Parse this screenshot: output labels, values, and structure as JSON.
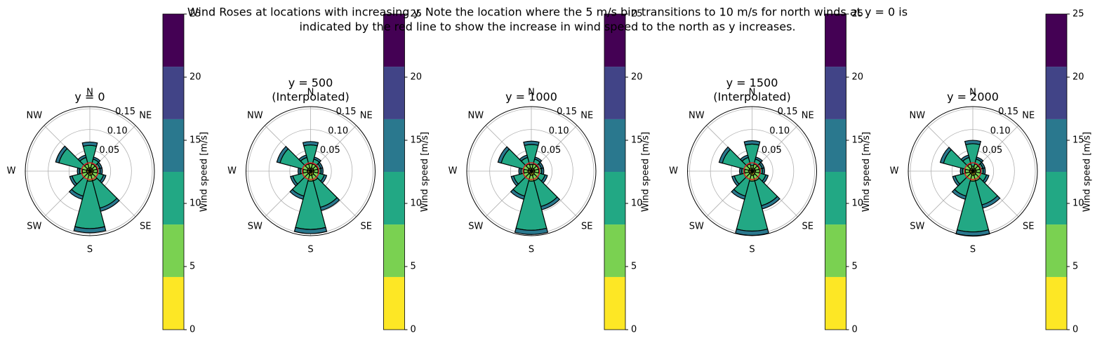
{
  "title": [
    "Wind Roses at locations with increasing y.  Note the location where the 5 m/s bin transitions to 10 m/s for north winds at y = 0 is",
    "indicated by the red line to show the increase in wind speed to the north as y increases."
  ],
  "chart_data": [
    {
      "type": "windrose",
      "title": "y = 0",
      "directions": [
        0,
        30,
        60,
        90,
        120,
        150,
        180,
        210,
        240,
        270,
        300,
        330
      ],
      "rlim": [
        0,
        0.155
      ],
      "rticks": [
        {
          "value": 0.05,
          "label": "0.05"
        },
        {
          "value": 0.1,
          "label": "0.10"
        },
        {
          "value": 0.15,
          "label": "0.15"
        }
      ],
      "thetaticks": [
        {
          "value": 0,
          "label": "N"
        },
        {
          "value": 45,
          "label": "NE"
        },
        {
          "value": 135,
          "label": "SE"
        },
        {
          "value": 180,
          "label": "S"
        },
        {
          "value": 225,
          "label": "SW"
        },
        {
          "value": 270,
          "label": "W"
        },
        {
          "value": 315,
          "label": "NW"
        }
      ],
      "reference_radius": 0.02,
      "reference_color": "#d62728",
      "series": [
        {
          "color": "#fde725",
          "values": [
            0.008,
            0.008,
            0.008,
            0.008,
            0.008,
            0.01,
            0.01,
            0.008,
            0.008,
            0.008,
            0.008,
            0.008
          ]
        },
        {
          "color": "#7ad151",
          "values": [
            0.012,
            0.01,
            0.01,
            0.01,
            0.012,
            0.014,
            0.014,
            0.012,
            0.012,
            0.01,
            0.012,
            0.01
          ]
        },
        {
          "color": "#22a884",
          "values": [
            0.042,
            0.012,
            0.007,
            0.007,
            0.014,
            0.068,
            0.114,
            0.042,
            0.024,
            0.007,
            0.057,
            0.016
          ]
        },
        {
          "color": "#2a788e",
          "values": [
            0.008,
            0.005,
            0.005,
            0.005,
            0.006,
            0.008,
            0.01,
            0.008,
            0.006,
            0.005,
            0.008,
            0.006
          ]
        }
      ],
      "colorbar": {
        "label": "Wind speed [m/s]",
        "bounds": [
          0,
          4.17,
          8.33,
          12.5,
          16.67,
          20.83,
          25
        ],
        "colors": [
          "#fde725",
          "#7ad151",
          "#22a884",
          "#2a788e",
          "#414487",
          "#440154"
        ],
        "ticks": [
          0,
          5,
          10,
          15,
          20,
          25
        ]
      }
    },
    {
      "type": "windrose",
      "title": "y = 500",
      "subtitle": "(Interpolated)",
      "directions": [
        0,
        30,
        60,
        90,
        120,
        150,
        180,
        210,
        240,
        270,
        300,
        330
      ],
      "rlim": [
        0,
        0.155
      ],
      "rticks": [
        {
          "value": 0.05,
          "label": "0.05"
        },
        {
          "value": 0.1,
          "label": "0.10"
        },
        {
          "value": 0.15,
          "label": "0.15"
        }
      ],
      "thetaticks": [
        {
          "value": 0,
          "label": "N"
        },
        {
          "value": 45,
          "label": "NE"
        },
        {
          "value": 135,
          "label": "SE"
        },
        {
          "value": 180,
          "label": "S"
        },
        {
          "value": 225,
          "label": "SW"
        },
        {
          "value": 270,
          "label": "W"
        },
        {
          "value": 315,
          "label": "NW"
        }
      ],
      "reference_radius": 0.02,
      "reference_color": "#d62728",
      "series": [
        {
          "color": "#fde725",
          "values": [
            0.007,
            0.008,
            0.008,
            0.008,
            0.008,
            0.01,
            0.01,
            0.008,
            0.008,
            0.008,
            0.008,
            0.008
          ]
        },
        {
          "color": "#7ad151",
          "values": [
            0.011,
            0.01,
            0.01,
            0.01,
            0.012,
            0.014,
            0.014,
            0.012,
            0.012,
            0.01,
            0.012,
            0.01
          ]
        },
        {
          "color": "#22a884",
          "values": [
            0.045,
            0.012,
            0.007,
            0.007,
            0.014,
            0.066,
            0.116,
            0.042,
            0.024,
            0.007,
            0.056,
            0.016
          ]
        },
        {
          "color": "#2a788e",
          "values": [
            0.008,
            0.005,
            0.005,
            0.005,
            0.006,
            0.008,
            0.01,
            0.008,
            0.006,
            0.005,
            0.008,
            0.006
          ]
        }
      ],
      "colorbar": {
        "label": "Wind speed [m/s]",
        "bounds": [
          0,
          4.17,
          8.33,
          12.5,
          16.67,
          20.83,
          25
        ],
        "colors": [
          "#fde725",
          "#7ad151",
          "#22a884",
          "#2a788e",
          "#414487",
          "#440154"
        ],
        "ticks": [
          0,
          5,
          10,
          15,
          20,
          25
        ]
      }
    },
    {
      "type": "windrose",
      "title": "y = 1000",
      "directions": [
        0,
        30,
        60,
        90,
        120,
        150,
        180,
        210,
        240,
        270,
        300,
        330
      ],
      "rlim": [
        0,
        0.155
      ],
      "rticks": [
        {
          "value": 0.05,
          "label": "0.05"
        },
        {
          "value": 0.1,
          "label": "0.10"
        },
        {
          "value": 0.15,
          "label": "0.15"
        }
      ],
      "thetaticks": [
        {
          "value": 0,
          "label": "N"
        },
        {
          "value": 45,
          "label": "NE"
        },
        {
          "value": 135,
          "label": "SE"
        },
        {
          "value": 180,
          "label": "S"
        },
        {
          "value": 225,
          "label": "SW"
        },
        {
          "value": 270,
          "label": "W"
        },
        {
          "value": 315,
          "label": "NW"
        }
      ],
      "reference_radius": 0.02,
      "reference_color": "#d62728",
      "series": [
        {
          "color": "#fde725",
          "values": [
            0.006,
            0.008,
            0.008,
            0.008,
            0.008,
            0.01,
            0.01,
            0.008,
            0.008,
            0.008,
            0.008,
            0.008
          ]
        },
        {
          "color": "#7ad151",
          "values": [
            0.01,
            0.01,
            0.01,
            0.01,
            0.012,
            0.014,
            0.014,
            0.012,
            0.012,
            0.01,
            0.012,
            0.01
          ]
        },
        {
          "color": "#22a884",
          "values": [
            0.048,
            0.012,
            0.007,
            0.007,
            0.014,
            0.064,
            0.118,
            0.042,
            0.024,
            0.007,
            0.055,
            0.016
          ]
        },
        {
          "color": "#2a788e",
          "values": [
            0.008,
            0.005,
            0.005,
            0.005,
            0.006,
            0.008,
            0.01,
            0.008,
            0.006,
            0.005,
            0.008,
            0.006
          ]
        }
      ],
      "colorbar": {
        "label": "Wind speed [m/s]",
        "bounds": [
          0,
          4.17,
          8.33,
          12.5,
          16.67,
          20.83,
          25
        ],
        "colors": [
          "#fde725",
          "#7ad151",
          "#22a884",
          "#2a788e",
          "#414487",
          "#440154"
        ],
        "ticks": [
          0,
          5,
          10,
          15,
          20,
          25
        ]
      }
    },
    {
      "type": "windrose",
      "title": "y = 1500",
      "subtitle": "(Interpolated)",
      "directions": [
        0,
        30,
        60,
        90,
        120,
        150,
        180,
        210,
        240,
        270,
        300,
        330
      ],
      "rlim": [
        0,
        0.155
      ],
      "rticks": [
        {
          "value": 0.05,
          "label": "0.05"
        },
        {
          "value": 0.1,
          "label": "0.10"
        },
        {
          "value": 0.15,
          "label": "0.15"
        }
      ],
      "thetaticks": [
        {
          "value": 0,
          "label": "N"
        },
        {
          "value": 45,
          "label": "NE"
        },
        {
          "value": 135,
          "label": "SE"
        },
        {
          "value": 180,
          "label": "S"
        },
        {
          "value": 225,
          "label": "SW"
        },
        {
          "value": 270,
          "label": "W"
        },
        {
          "value": 315,
          "label": "NW"
        }
      ],
      "reference_radius": 0.02,
      "reference_color": "#d62728",
      "series": [
        {
          "color": "#fde725",
          "values": [
            0.005,
            0.008,
            0.008,
            0.008,
            0.008,
            0.01,
            0.01,
            0.008,
            0.008,
            0.008,
            0.008,
            0.008
          ]
        },
        {
          "color": "#7ad151",
          "values": [
            0.009,
            0.01,
            0.01,
            0.01,
            0.012,
            0.014,
            0.014,
            0.012,
            0.012,
            0.01,
            0.012,
            0.01
          ]
        },
        {
          "color": "#22a884",
          "values": [
            0.051,
            0.012,
            0.007,
            0.007,
            0.014,
            0.062,
            0.12,
            0.042,
            0.024,
            0.007,
            0.054,
            0.016
          ]
        },
        {
          "color": "#2a788e",
          "values": [
            0.008,
            0.005,
            0.005,
            0.005,
            0.006,
            0.008,
            0.01,
            0.008,
            0.006,
            0.005,
            0.008,
            0.006
          ]
        }
      ],
      "colorbar": {
        "label": "Wind speed [m/s]",
        "bounds": [
          0,
          4.17,
          8.33,
          12.5,
          16.67,
          20.83,
          25
        ],
        "colors": [
          "#fde725",
          "#7ad151",
          "#22a884",
          "#2a788e",
          "#414487",
          "#440154"
        ],
        "ticks": [
          0,
          5,
          10,
          15,
          20,
          25
        ]
      }
    },
    {
      "type": "windrose",
      "title": "y = 2000",
      "directions": [
        0,
        30,
        60,
        90,
        120,
        150,
        180,
        210,
        240,
        270,
        300,
        330
      ],
      "rlim": [
        0,
        0.155
      ],
      "rticks": [
        {
          "value": 0.05,
          "label": "0.05"
        },
        {
          "value": 0.1,
          "label": "0.10"
        },
        {
          "value": 0.15,
          "label": "0.15"
        }
      ],
      "thetaticks": [
        {
          "value": 0,
          "label": "N"
        },
        {
          "value": 45,
          "label": "NE"
        },
        {
          "value": 135,
          "label": "SE"
        },
        {
          "value": 180,
          "label": "S"
        },
        {
          "value": 225,
          "label": "SW"
        },
        {
          "value": 270,
          "label": "W"
        },
        {
          "value": 315,
          "label": "NW"
        }
      ],
      "reference_radius": 0.02,
      "reference_color": "#d62728",
      "series": [
        {
          "color": "#fde725",
          "values": [
            0.004,
            0.008,
            0.008,
            0.008,
            0.008,
            0.01,
            0.01,
            0.008,
            0.008,
            0.008,
            0.008,
            0.008
          ]
        },
        {
          "color": "#7ad151",
          "values": [
            0.008,
            0.01,
            0.01,
            0.01,
            0.012,
            0.014,
            0.014,
            0.012,
            0.012,
            0.01,
            0.012,
            0.01
          ]
        },
        {
          "color": "#22a884",
          "values": [
            0.054,
            0.012,
            0.007,
            0.007,
            0.014,
            0.06,
            0.122,
            0.042,
            0.024,
            0.007,
            0.053,
            0.016
          ]
        },
        {
          "color": "#2a788e",
          "values": [
            0.008,
            0.005,
            0.005,
            0.005,
            0.006,
            0.008,
            0.01,
            0.008,
            0.006,
            0.005,
            0.008,
            0.006
          ]
        }
      ],
      "colorbar": {
        "label": "Wind speed [m/s]",
        "bounds": [
          0,
          4.17,
          8.33,
          12.5,
          16.67,
          20.83,
          25
        ],
        "colors": [
          "#fde725",
          "#7ad151",
          "#22a884",
          "#2a788e",
          "#414487",
          "#440154"
        ],
        "ticks": [
          0,
          5,
          10,
          15,
          20,
          25
        ]
      }
    }
  ]
}
